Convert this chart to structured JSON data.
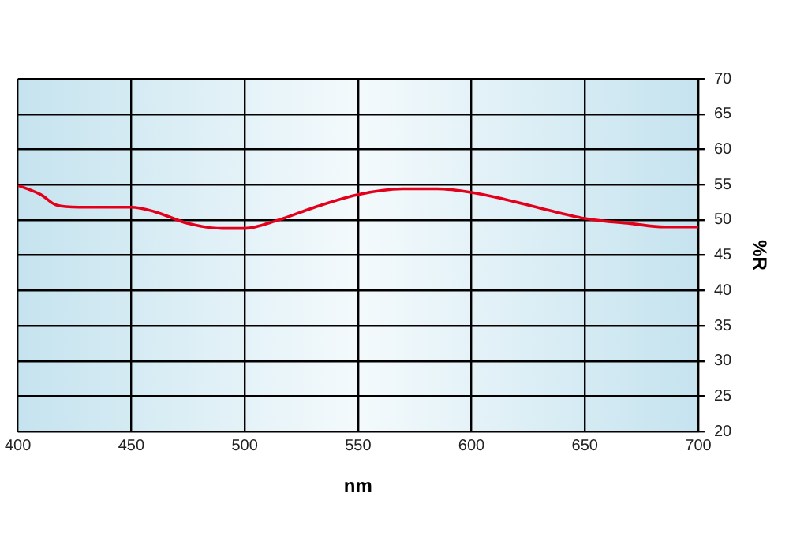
{
  "chart_data": {
    "type": "line",
    "xlabel": "nm",
    "ylabel": "%R",
    "x": [
      400,
      410,
      417,
      427,
      440,
      450,
      460,
      475,
      490,
      500,
      515,
      530,
      550,
      570,
      585,
      600,
      615,
      630,
      650,
      670,
      685,
      700
    ],
    "series": [
      {
        "color": "#e3001b",
        "values": [
          54.9,
          53.6,
          52.1,
          51.8,
          51.8,
          51.8,
          51.2,
          49.5,
          48.8,
          48.8,
          50,
          51.7,
          53.6,
          54.4,
          54.4,
          53.9,
          52.9,
          51.7,
          50.2,
          49.5,
          49,
          49
        ]
      }
    ],
    "xlim": [
      400,
      700
    ],
    "xticks": [
      400,
      450,
      500,
      550,
      600,
      650,
      700
    ],
    "ylim": [
      20,
      70
    ],
    "yticks": [
      20,
      25,
      30,
      35,
      40,
      45,
      50,
      55,
      60,
      65,
      70
    ],
    "grid": true,
    "legend": false,
    "marker": "none",
    "line_style": "solid"
  }
}
